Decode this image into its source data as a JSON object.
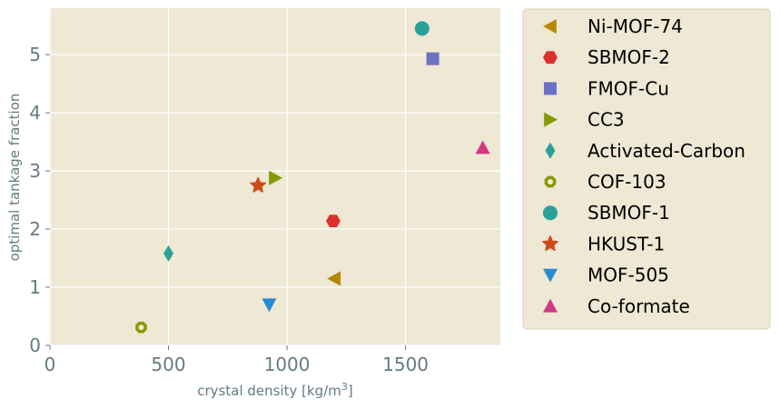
{
  "chart_data": {
    "type": "scatter",
    "title": "",
    "xlabel": "crystal density [kg/m",
    "xlabel_superscript": "3",
    "xlabel_suffix": "]",
    "ylabel": "optimal tankage fraction",
    "xlim": [
      0,
      1900
    ],
    "ylim": [
      0,
      5.8
    ],
    "xticks": [
      0,
      500,
      1000,
      1500
    ],
    "xtick_labels": [
      "0",
      "500",
      "1000",
      "1500"
    ],
    "yticks": [
      0,
      1,
      2,
      3,
      4,
      5
    ],
    "ytick_labels": [
      "0",
      "1",
      "2",
      "3",
      "4",
      "5"
    ],
    "grid": true,
    "legend_position": "outside right",
    "colors": {
      "axes_background": "#eee8d5",
      "grid": "#ffffff",
      "tick_text": "#657b83"
    },
    "series": [
      {
        "name": "Ni-MOF-74",
        "marker": "triangle-left",
        "color": "#b58900",
        "points": [
          [
            1200,
            1.15
          ]
        ]
      },
      {
        "name": "SBMOF-2",
        "marker": "hexagon",
        "color": "#dc322f",
        "points": [
          [
            1195,
            2.14
          ]
        ]
      },
      {
        "name": "FMOF-Cu",
        "marker": "square",
        "color": "#6c71c4",
        "points": [
          [
            1615,
            4.93
          ]
        ]
      },
      {
        "name": "CC3",
        "marker": "triangle-right",
        "color": "#859900",
        "points": [
          [
            950,
            2.88
          ]
        ]
      },
      {
        "name": "Activated-Carbon",
        "marker": "thin-diamond",
        "color": "#2aa198",
        "points": [
          [
            500,
            1.58
          ]
        ]
      },
      {
        "name": "COF-103",
        "marker": "octagon-open",
        "color": "#859900",
        "points": [
          [
            385,
            0.31
          ]
        ]
      },
      {
        "name": "SBMOF-1",
        "marker": "circle",
        "color": "#2aa198",
        "points": [
          [
            1570,
            5.45
          ]
        ]
      },
      {
        "name": "HKUST-1",
        "marker": "star",
        "color": "#cb4b16",
        "points": [
          [
            878,
            2.75
          ]
        ]
      },
      {
        "name": "MOF-505",
        "marker": "triangle-down",
        "color": "#268bd2",
        "points": [
          [
            925,
            0.7
          ]
        ]
      },
      {
        "name": "Co-formate",
        "marker": "triangle-up",
        "color": "#d33682",
        "points": [
          [
            1826,
            3.4
          ]
        ]
      }
    ]
  }
}
